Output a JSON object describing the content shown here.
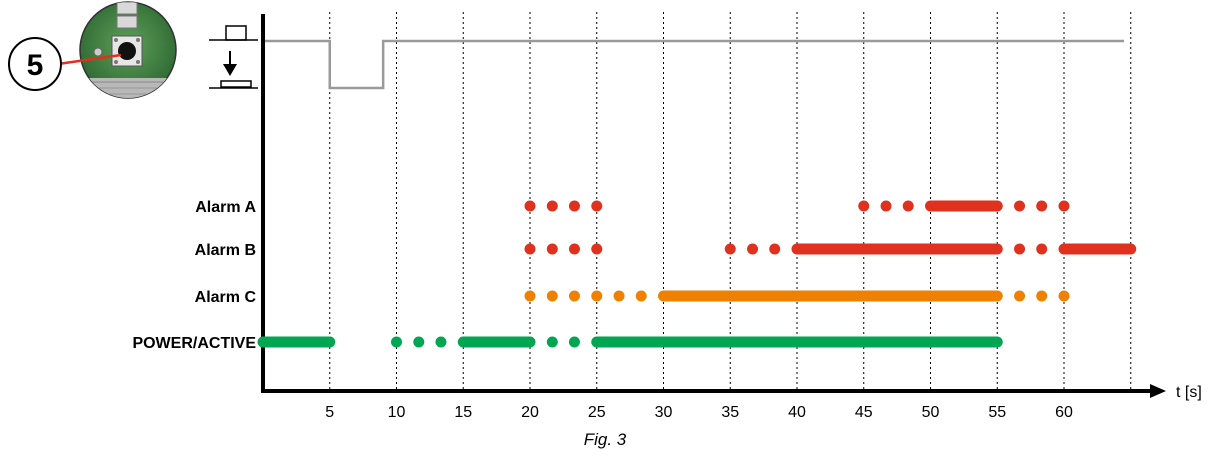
{
  "figure": {
    "caption": "Fig. 3",
    "badge_number": "5",
    "x_axis_label": "t [s]",
    "x_ticks": [
      "5",
      "10",
      "15",
      "20",
      "25",
      "30",
      "35",
      "40",
      "45",
      "50",
      "55",
      "60"
    ],
    "icons": [
      "pcb-button-icon",
      "button-released-icon",
      "button-pressed-icon"
    ],
    "button_signal": {
      "description_points_s": [
        [
          0,
          "released"
        ],
        [
          5,
          "pressed"
        ],
        [
          9,
          "released"
        ],
        [
          65,
          "released"
        ]
      ]
    }
  },
  "colors": {
    "red": "#e0301e",
    "orange": "#f08000",
    "green": "#00a651",
    "signal": "#9a9a9a",
    "axis": "#000000"
  },
  "rows": [
    {
      "label": "Alarm A",
      "color": "red",
      "dots": [
        20,
        21.67,
        23.33,
        25,
        45,
        46.67,
        48.33,
        60,
        56.67,
        58.33
      ],
      "bars": [
        [
          50,
          55
        ]
      ]
    },
    {
      "label": "Alarm B",
      "color": "red",
      "dots": [
        20,
        21.67,
        23.33,
        25,
        35,
        36.67,
        38.33,
        56.67,
        58.33
      ],
      "bars": [
        [
          40,
          55
        ],
        [
          60,
          65
        ]
      ]
    },
    {
      "label": "Alarm C",
      "color": "orange",
      "dots": [
        20,
        21.67,
        23.33,
        25,
        26.67,
        28.33,
        56.67,
        58.33,
        60
      ],
      "bars": [
        [
          30,
          55
        ]
      ]
    },
    {
      "label": "POWER/ACTIVE",
      "color": "green",
      "dots": [
        10,
        11.67,
        13.33,
        21.67,
        23.33
      ],
      "bars": [
        [
          0,
          5
        ],
        [
          15,
          20
        ],
        [
          25,
          55
        ]
      ]
    }
  ]
}
